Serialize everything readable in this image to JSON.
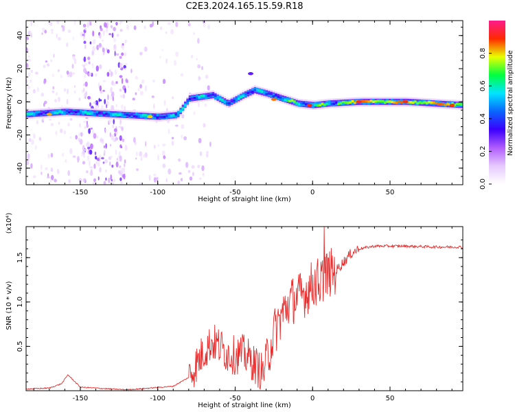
{
  "title": "C2E3.2024.165.15.59.R18",
  "colors": {
    "signal": "#e82a2a",
    "colorbar_ramp": [
      "#ffffff",
      "#e6c8ff",
      "#b05cff",
      "#3b00ff",
      "#0a66ff",
      "#00e5ff",
      "#00ff40",
      "#e8ff00",
      "#ff2a00",
      "#ff1a8c"
    ]
  },
  "chart_data": [
    {
      "type": "heatmap",
      "title": "C2E3.2024.165.15.59.R18",
      "xlabel": "Height of straight line (km)",
      "ylabel": "Frequency (Hz)",
      "xlim": [
        -185,
        97
      ],
      "ylim": [
        -50,
        49
      ],
      "xticks": [
        -150,
        -100,
        -50,
        0,
        50
      ],
      "yticks": [
        40,
        20,
        0,
        -20,
        -40
      ],
      "ridge": {
        "x": [
          -185,
          -160,
          -140,
          -120,
          -100,
          -88,
          -80,
          -65,
          -55,
          -45,
          -38,
          -30,
          -20,
          -10,
          0,
          10,
          30,
          60,
          97
        ],
        "frequency": [
          -7.5,
          -6,
          -7,
          -8,
          -9,
          -8,
          2,
          4,
          -1,
          4,
          7,
          5,
          2,
          -1,
          -2,
          -1,
          0,
          0,
          -2
        ]
      },
      "colorbar": {
        "label": "Normalized spectral amplitude",
        "range": [
          0,
          1
        ],
        "ticks": [
          "0.0",
          "0.2",
          "0.4",
          "0.6",
          "0.8"
        ]
      }
    },
    {
      "type": "line",
      "xlabel": "Height of straight line (km)",
      "ylabel": "SNR (10 * v/v)",
      "yscale_label": "(x10⁴)",
      "xlim": [
        -185,
        97
      ],
      "ylim": [
        0,
        1.85
      ],
      "xticks": [
        -150,
        -100,
        -50,
        0,
        50
      ],
      "yticks": [
        "0.5",
        "1.0",
        "1.5"
      ],
      "series": [
        {
          "x": [
            -185,
            -170,
            -162,
            -158,
            -150,
            -120,
            -90,
            -80,
            -75,
            -70,
            -65,
            -60,
            -55,
            -50,
            -45,
            -40,
            -35,
            -32,
            -25,
            -20,
            -15,
            -10,
            -5,
            0,
            5,
            10,
            15,
            20,
            25,
            30,
            40,
            60,
            80,
            97
          ],
          "values": [
            0.02,
            0.03,
            0.08,
            0.18,
            0.04,
            0.01,
            0.05,
            0.15,
            0.3,
            0.45,
            0.55,
            0.5,
            0.42,
            0.4,
            0.42,
            0.35,
            0.25,
            0.2,
            0.65,
            0.85,
            1.0,
            1.05,
            1.1,
            1.2,
            1.25,
            1.32,
            1.35,
            1.45,
            1.55,
            1.6,
            1.63,
            1.63,
            1.62,
            1.62
          ]
        }
      ]
    }
  ]
}
